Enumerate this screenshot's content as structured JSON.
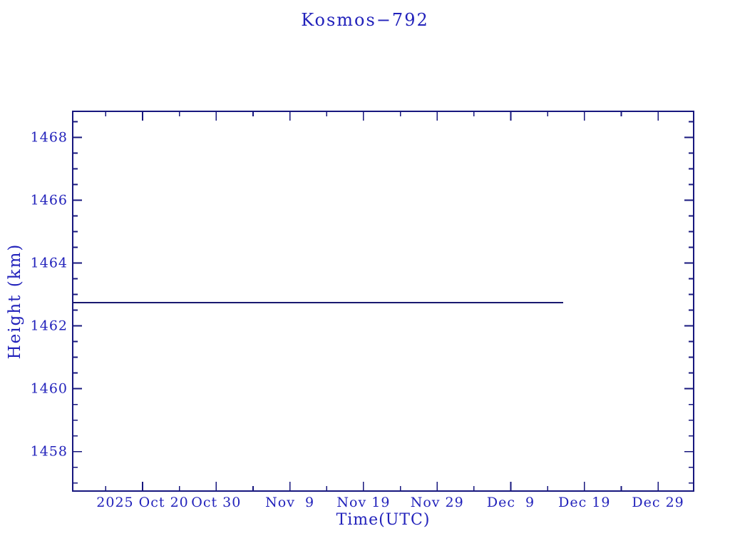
{
  "chart_data": {
    "type": "line",
    "title": "Kosmos−792",
    "xlabel": "Time(UTC)",
    "ylabel": "Height (km)",
    "x_axis_note": "x values are 2025 day-of-year (UTC); axis spans approx 2025 Oct 10 to 2026 Jan 3",
    "xlim": [
      283.51,
      367.83
    ],
    "ylim": [
      1456.74,
      1468.83
    ],
    "x_ticks": [
      {
        "day": 293,
        "label": "2025 Oct 20"
      },
      {
        "day": 303,
        "label": "Oct 30"
      },
      {
        "day": 313,
        "label": "Nov  9"
      },
      {
        "day": 323,
        "label": "Nov 19"
      },
      {
        "day": 333,
        "label": "Nov 29"
      },
      {
        "day": 343,
        "label": "Dec  9"
      },
      {
        "day": 353,
        "label": "Dec 19"
      },
      {
        "day": 363,
        "label": "Dec 29"
      }
    ],
    "x_minor_tick_days": [
      288,
      298,
      308,
      318,
      328,
      338,
      348,
      358,
      368
    ],
    "y_ticks": [
      1458,
      1460,
      1462,
      1464,
      1466,
      1468
    ],
    "y_minor_step": 0.5,
    "grid": false,
    "legend": "none",
    "series": [
      {
        "name": "height",
        "points": [
          [
            283.51,
            1462.74
          ],
          [
            350.1,
            1462.74
          ]
        ],
        "description": "constant orbital height ~1462.74 km from ~2025 Oct 10 to ~2025 Dec 16"
      }
    ],
    "colors": {
      "text": "#2222bb",
      "axis": "#17177e",
      "line": "#191970",
      "background": "#ffffff"
    }
  }
}
